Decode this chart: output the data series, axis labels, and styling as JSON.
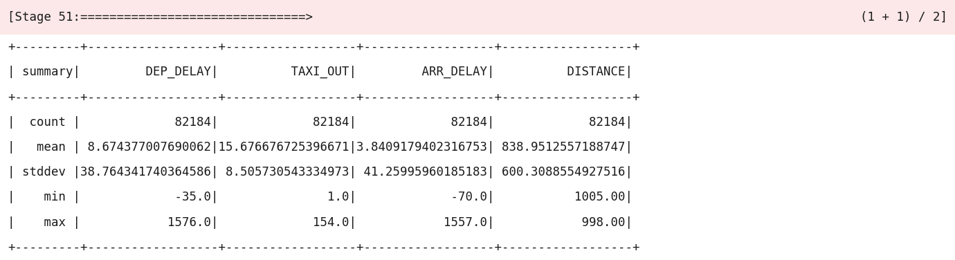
{
  "progress_line": "[Stage 51:===============================>                                         (1 + 1) / 2]",
  "sep_line": "+---------+------------------+------------------+------------------+------------------+",
  "header_line": "|summary| DEP_DELAY|          TAXI_OUT|         ARR_DELAY|          DISTANCE|",
  "data_lines": [
    "|  count|             82184|             82184|             82184|             82184|",
    "|   mean| 8.674377007690062|15.676676725396671|3.8409179402316753| 838.9512557188747|",
    "| stddev|38.764341740364586| 8.505730543334973| 41.25995960185183| 600.3088554927516|",
    "|    min|             -35.0|               1.0|             -70.0|           1005.00|",
    "|    max|            1576.0|             154.0|            1557.0|            998.00|"
  ],
  "progress_bg_color": "#fce8e8",
  "table_bg_color": "#ffffff",
  "text_color": "#1a1a1a",
  "font_family": "monospace",
  "font_size": 12.5,
  "progress_font_size": 12.5,
  "fig_width": 13.8,
  "fig_height": 3.76,
  "dpi": 100
}
